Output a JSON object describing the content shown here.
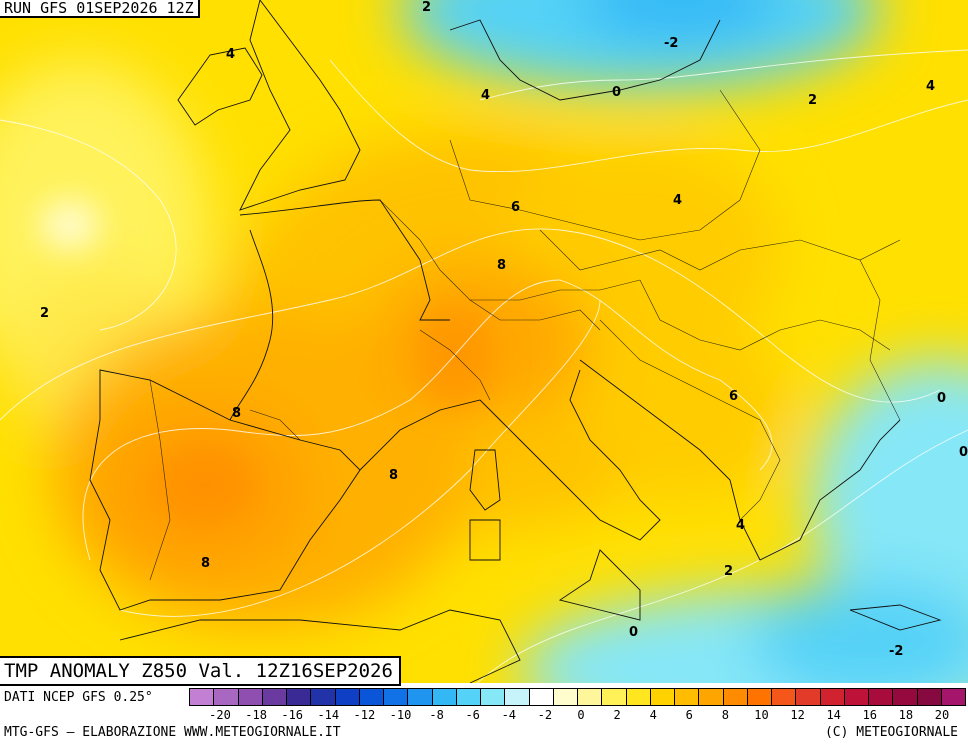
{
  "header": {
    "run": "RUN GFS 01SEP2026 12Z",
    "title": "TMP ANOMALY Z850 Val. 12Z16SEP2026"
  },
  "footer": {
    "source": "DATI NCEP GFS 0.25°",
    "credit": "MTG-GFS – ELABORAZIONE WWW.METEOGIORNALE.IT",
    "copyright": "(C) METEOGIORNALE"
  },
  "contour_labels": [
    "2",
    "-2",
    "4",
    "4",
    "0",
    "2",
    "4",
    "6",
    "4",
    "8",
    "2",
    "8",
    "6",
    "0",
    "0",
    "8",
    "4",
    "8",
    "2",
    "0",
    "-2"
  ],
  "legend": {
    "colors": [
      "#c27fd3",
      "#a867c0",
      "#8f4fb0",
      "#6b3aa0",
      "#3a2a95",
      "#2232a8",
      "#0f3fc4",
      "#0a55d8",
      "#1072e6",
      "#1f95ef",
      "#33b8f5",
      "#55d2f7",
      "#86e7f7",
      "#c7f4fa",
      "#ffffff",
      "#fffccd",
      "#fff59a",
      "#fff157",
      "#ffe61f",
      "#ffd200",
      "#ffbc00",
      "#ffa500",
      "#ff8c00",
      "#ff7300",
      "#f5561a",
      "#e23b2a",
      "#d0222f",
      "#bf1238",
      "#a80c3c",
      "#96093f",
      "#86093f",
      "#a4156b"
    ],
    "ticks": [
      "-20",
      "-18",
      "-16",
      "-14",
      "-12",
      "-10",
      "-8",
      "-6",
      "-4",
      "-2",
      "0",
      "2",
      "4",
      "6",
      "8",
      "10",
      "12",
      "14",
      "16",
      "18",
      "20"
    ]
  }
}
